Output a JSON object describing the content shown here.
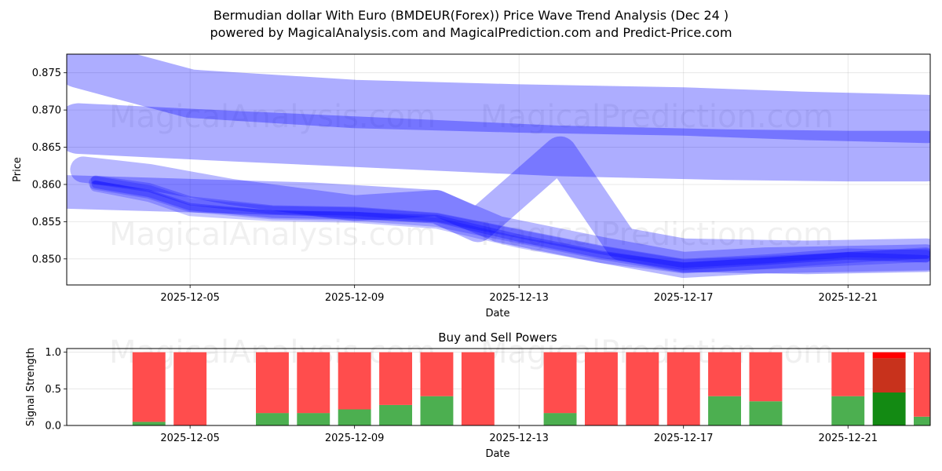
{
  "figure": {
    "title_line1": "Bermudian dollar With Euro (BMDEUR(Forex)) Price Wave Trend Analysis (Dec 24 )",
    "title_line2": "powered by MagicalAnalysis.com and MagicalPrediction.com and Predict-Price.com",
    "watermarks": [
      "MagicalAnalysis.com",
      "MagicalPrediction.com"
    ],
    "colors": {
      "band": "#0000ff",
      "buy": "#4caf50",
      "sell": "#ff4d4d",
      "buy_strong": "#138a13",
      "sell_strong": "#ff0000",
      "mix": "#c8321c"
    }
  },
  "chart_data": [
    {
      "type": "line",
      "title": "",
      "xlabel": "Date",
      "ylabel": "Price",
      "x_tick_labels": [
        "2025-12-05",
        "2025-12-09",
        "2025-12-13",
        "2025-12-17",
        "2025-12-21"
      ],
      "x_ticks_day": [
        5,
        9,
        13,
        17,
        21
      ],
      "xlim_day": [
        2.0,
        23.0
      ],
      "y_tick_labels": [
        "0.850",
        "0.855",
        "0.860",
        "0.865",
        "0.870",
        "0.875"
      ],
      "y_ticks": [
        0.85,
        0.855,
        0.86,
        0.865,
        0.87,
        0.875
      ],
      "ylim": [
        0.8465,
        0.8775
      ],
      "grid": true,
      "series": [
        {
          "name": "wide-upper-band",
          "width": 0.0065,
          "opacity": 0.32,
          "x_day": [
            2.3,
            5,
            9,
            13,
            17,
            20,
            22.9
          ],
          "y": [
            0.8762,
            0.8722,
            0.8708,
            0.8702,
            0.8698,
            0.8692,
            0.8688
          ]
        },
        {
          "name": "wide-upper-band-2",
          "width": 0.0068,
          "opacity": 0.32,
          "x_day": [
            2.3,
            6,
            10,
            14,
            18,
            21,
            22.9
          ],
          "y": [
            0.8675,
            0.8665,
            0.8655,
            0.8645,
            0.864,
            0.8638,
            0.8638
          ]
        },
        {
          "name": "mid-band-A",
          "width": 0.0045,
          "opacity": 0.3,
          "x_day": [
            2.0,
            5,
            8,
            11,
            12,
            14,
            15.5,
            17,
            20,
            22.9
          ],
          "y": [
            0.859,
            0.8585,
            0.858,
            0.857,
            0.8545,
            0.8642,
            0.852,
            0.8505,
            0.8502,
            0.8505
          ]
        },
        {
          "name": "mid-band-B",
          "width": 0.0035,
          "opacity": 0.28,
          "x_day": [
            2.4,
            4,
            6,
            9,
            11,
            12.5,
            15,
            17,
            19,
            22.9
          ],
          "y": [
            0.862,
            0.861,
            0.859,
            0.8568,
            0.8575,
            0.854,
            0.8512,
            0.8492,
            0.8498,
            0.8502
          ]
        },
        {
          "name": "trend-1",
          "width": 0.0018,
          "opacity": 0.22,
          "x_day": [
            2.7,
            4,
            5,
            7,
            9,
            11,
            13,
            15,
            17,
            19,
            21,
            22.9
          ],
          "y": [
            0.8602,
            0.859,
            0.8572,
            0.8562,
            0.856,
            0.8552,
            0.853,
            0.8508,
            0.849,
            0.8495,
            0.85,
            0.8505
          ]
        },
        {
          "name": "trend-2",
          "width": 0.0015,
          "opacity": 0.22,
          "x_day": [
            2.7,
            4,
            5,
            7,
            9,
            11,
            13,
            15,
            17,
            19,
            21,
            22.9
          ],
          "y": [
            0.8598,
            0.8584,
            0.8565,
            0.8558,
            0.8556,
            0.8548,
            0.8522,
            0.8502,
            0.8488,
            0.8494,
            0.8502,
            0.8508
          ]
        },
        {
          "name": "trend-3",
          "width": 0.0012,
          "opacity": 0.25,
          "x_day": [
            2.7,
            4,
            5,
            7,
            9,
            11,
            13,
            15,
            17,
            19,
            21,
            22.9
          ],
          "y": [
            0.8606,
            0.8596,
            0.8578,
            0.8566,
            0.8564,
            0.8556,
            0.8534,
            0.8512,
            0.8494,
            0.85,
            0.8508,
            0.8506
          ]
        },
        {
          "name": "trend-4",
          "width": 0.001,
          "opacity": 0.28,
          "x_day": [
            2.7,
            4,
            5,
            7,
            9,
            11,
            13,
            15,
            17,
            19,
            21,
            22.9
          ],
          "y": [
            0.86,
            0.8588,
            0.857,
            0.856,
            0.8558,
            0.8554,
            0.8528,
            0.8506,
            0.849,
            0.8497,
            0.8504,
            0.85
          ]
        }
      ]
    },
    {
      "type": "bar",
      "stacked": true,
      "title": "Buy and Sell Powers",
      "xlabel": "Date",
      "ylabel": "Signal Strength",
      "x_tick_labels": [
        "2025-12-05",
        "2025-12-09",
        "2025-12-13",
        "2025-12-17",
        "2025-12-21"
      ],
      "x_ticks_day": [
        5,
        9,
        13,
        17,
        21
      ],
      "xlim_day": [
        2.0,
        23.0
      ],
      "y_tick_labels": [
        "0.0",
        "0.5",
        "1.0"
      ],
      "y_ticks": [
        0.0,
        0.5,
        1.0
      ],
      "ylim": [
        0.0,
        1.05
      ],
      "grid": true,
      "bar_width_days": 0.8,
      "categories": [
        "2025-12-04",
        "2025-12-05",
        "2025-12-07",
        "2025-12-08",
        "2025-12-09",
        "2025-12-10",
        "2025-12-11",
        "2025-12-12",
        "2025-12-14",
        "2025-12-15",
        "2025-12-16",
        "2025-12-17",
        "2025-12-18",
        "2025-12-19",
        "2025-12-21",
        "2025-12-22",
        "2025-12-23"
      ],
      "x_day": [
        4,
        5,
        7,
        8,
        9,
        10,
        11,
        12,
        14,
        15,
        16,
        17,
        18,
        19,
        21,
        22,
        23
      ],
      "series": [
        {
          "name": "Buy",
          "values": [
            0.05,
            0.0,
            0.17,
            0.17,
            0.22,
            0.28,
            0.4,
            0.0,
            0.17,
            0.0,
            0.0,
            0.0,
            0.4,
            0.33,
            0.4,
            0.45,
            0.12
          ]
        },
        {
          "name": "Sell",
          "values": [
            0.95,
            1.0,
            0.83,
            0.83,
            0.78,
            0.72,
            0.6,
            1.0,
            0.83,
            1.0,
            1.0,
            1.0,
            0.6,
            0.67,
            0.6,
            0.55,
            0.88
          ]
        }
      ],
      "highlight_day": 22
    }
  ]
}
